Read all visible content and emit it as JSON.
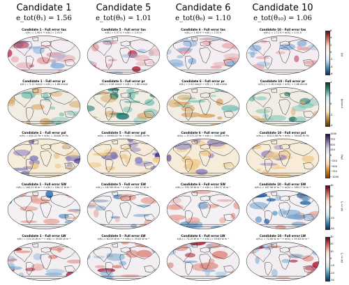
{
  "columns": [
    {
      "name": "Candidate 1",
      "metric": "e_tot(θ₁) = 1.56"
    },
    {
      "name": "Candidate 5",
      "metric": "e_tot(θ₅) = 1.01"
    },
    {
      "name": "Candidate 6",
      "metric": "e_tot(θ₆) = 1.10"
    },
    {
      "name": "Candidate 10",
      "metric": "e_tot(θ₁₀) = 1.06"
    }
  ],
  "rows": [
    {
      "variable": "tas",
      "titles": [
        "Candidate 1 - Full error tas",
        "Candidate 5 - Full error tas",
        "Candidate 6 - Full error tas",
        "Candidate 10 - Full error tas"
      ],
      "subtitles": [
        "e(θ₁) = 1.98 K  +  e(θ₂) = 2.01 K",
        "e(θ₅) = 1.57 K  +  e(θ₂) = 2.01 K",
        "e(θ₆) = 1.65 K  +  e(θ₂) = 2.01 K",
        "e(θ₁₀) = 1.72 K  +  e(θ₂) = 2.01 K"
      ],
      "colorbar": {
        "ticks": [
          "6",
          "4",
          "2",
          "0",
          "-2",
          "-4",
          "-6"
        ],
        "unit": "(K)",
        "colors": [
          "#67001f",
          "#d6604d",
          "#fddbc7",
          "#f7f7f7",
          "#d1e5f0",
          "#4393c3",
          "#053061"
        ]
      },
      "palette": {
        "bg": "#f4eef2",
        "pos": "#e6a3a8",
        "neg": "#8fb3dc",
        "strong": "#b21d3a"
      }
    },
    {
      "variable": "pr",
      "titles": [
        "Candidate 1 - Full error pr",
        "Candidate 5 - Full error pr",
        "Candidate 6 - Full error pr",
        "Candidate 10 - Full error pr"
      ],
      "subtitles": [
        "e(θ₁) = 3.12 mm/d  +  e(θ₂) = 1.88 mm/d",
        "e(θ₅) = 2.46 mm/d  +  e(θ₂) = 1.88 mm/d",
        "e(θ₆) = 2.53 mm/d  +  e(θ₂) = 1.88 mm/d",
        "e(θ₁₀) = 2.18 mm/d  +  e(θ₂) = 1.88 mm/d"
      ],
      "colorbar": {
        "ticks": [
          "4",
          "2",
          "0",
          "-2",
          "-4"
        ],
        "unit": "(mm/d)",
        "colors": [
          "#003c30",
          "#35978f",
          "#c7eae5",
          "#f5f5f5",
          "#f6e8c3",
          "#bf812d",
          "#543005"
        ]
      },
      "palette": {
        "bg": "#f1ede4",
        "pos": "#7ec4b7",
        "neg": "#d7a86a",
        "strong": "#1f7a6d"
      }
    },
    {
      "variable": "psl",
      "titles": [
        "Candidate 1 - Full error psl",
        "Candidate 5 - Full error psl",
        "Candidate 6 - Full error psl",
        "Candidate 10 - Full error psl"
      ],
      "subtitles": [
        "e(θ₁) = 602.02 Pa  +  e(θ₂) = 34406.39 Pa",
        "e(θ₅) = 34963.87 Pa  +  e(θ₂) = 34406.39 Pa",
        "e(θ₆) = 37272.15 Pa  +  e(θ₂) = 34406.39 Pa",
        "e(θ₁₀) = 35313.98 Pa  +  e(θ₂) = 34406.39 Pa"
      ],
      "colorbar": {
        "ticks": [
          "1000",
          "750",
          "500",
          "250",
          "0",
          "−250",
          "−500",
          "−750",
          "−1000"
        ],
        "unit": "(Pa)",
        "colors": [
          "#2d004b",
          "#8073ac",
          "#d8daeb",
          "#f7f7f7",
          "#fee0b6",
          "#e08214",
          "#7f3b08"
        ]
      },
      "palette": {
        "bg": "#f6ecd9",
        "pos": "#f0c98c",
        "neg": "#8f86c0",
        "strong": "#4a2d8a"
      }
    },
    {
      "variable": "SW",
      "titles": [
        "Candidate 1 - Full error SW",
        "Candidate 5 - Full error SW",
        "Candidate 6 - Full error SW",
        "Candidate 10 - Full error SW"
      ],
      "subtitles": [
        "e(θ₁) = 164.22 W m⁻²  +  e(θ₂) = 184.17 W m⁻²",
        "e(θ₅) = 167.69 W m⁻²  +  e(θ₂) = 184.17 W m⁻²",
        "e(θ₆) = 192.18 W m⁻²  +  e(θ₂) = 184.17 W m⁻²",
        "e(θ₁₀) = 187.96 W m⁻²  +  e(θ₂) = 184.17 W m⁻²"
      ],
      "colorbar": {
        "ticks": [
          "40",
          "20",
          "0",
          "-20",
          "-40"
        ],
        "unit": "(W m⁻²)",
        "colors": [
          "#67001f",
          "#d6604d",
          "#fddbc7",
          "#f7f7f7",
          "#d1e5f0",
          "#4393c3",
          "#053061"
        ]
      },
      "palette": {
        "bg": "#f3f1f4",
        "pos": "#e8a59c",
        "neg": "#6fa3cf",
        "strong": "#2166ac"
      }
    },
    {
      "variable": "LW",
      "titles": [
        "Candidate 1 - Full error LW",
        "Candidate 5 - Full error LW",
        "Candidate 6 - Full error LW",
        "Candidate 10 - Full error LW"
      ],
      "subtitles": [
        "e(θ₁) = 115.24 W m⁻²  +  e(θ₂) = 59.83 W m⁻²",
        "e(θ₅) = 62.09 W m⁻²  +  e(θ₂) = 59.83 W m⁻²",
        "e(θ₆) = 73.19 W m⁻²  +  e(θ₂) = 59.83 W m⁻²",
        "e(θ₁₀) = 72.84 W m⁻²  +  e(θ₂) = 59.83 W m⁻²"
      ],
      "colorbar": {
        "ticks": [
          "30",
          "20",
          "10",
          "0",
          "-10",
          "-20",
          "-30"
        ],
        "unit": "(W m⁻²)",
        "colors": [
          "#67001f",
          "#d6604d",
          "#fddbc7",
          "#f7f7f7",
          "#d1e5f0",
          "#4393c3",
          "#053061"
        ]
      },
      "palette": {
        "bg": "#f2eef2",
        "pos": "#df8a80",
        "neg": "#8cb6da",
        "strong": "#a50f26"
      }
    }
  ]
}
